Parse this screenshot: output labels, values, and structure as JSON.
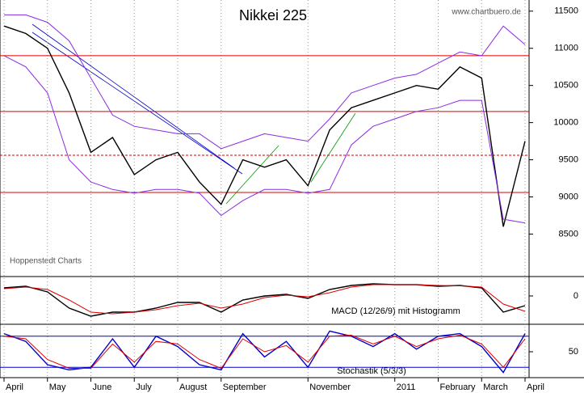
{
  "chart_data": [
    {
      "type": "line",
      "title": "Nikkei 225",
      "source": "www.chartbuero.de",
      "note": "Hoppenstedt Charts",
      "ylim": [
        7950,
        11650
      ],
      "yticks": [
        8500,
        9000,
        9500,
        10000,
        10500,
        11000,
        11500
      ],
      "levels": [
        10900,
        10150,
        9560,
        9060
      ],
      "level_color": "#dd0000",
      "series": [
        {
          "color": "#000000",
          "values": [
            11300,
            11200,
            11000,
            10400,
            9600,
            9800,
            9300,
            9500,
            9600,
            9200,
            8900,
            9500,
            9400,
            9500,
            9150,
            9900,
            10200,
            10300,
            10400,
            10500,
            10450,
            10750,
            10600,
            8600,
            9750
          ]
        },
        {
          "color": "#8a2be2",
          "values": [
            11450,
            11450,
            11350,
            11100,
            10600,
            10100,
            9950,
            9900,
            9850,
            9850,
            9650,
            9750,
            9850,
            9800,
            9750,
            10050,
            10400,
            10500,
            10600,
            10650,
            10800,
            10950,
            10900,
            11300,
            11050
          ]
        },
        {
          "color": "#8a2be2",
          "values": [
            10900,
            10750,
            10400,
            9500,
            9200,
            9100,
            9050,
            9100,
            9100,
            9050,
            8750,
            8950,
            9100,
            9100,
            9050,
            9100,
            9700,
            9950,
            10050,
            10150,
            10200,
            10300,
            10300,
            8700,
            8650
          ]
        }
      ]
    },
    {
      "type": "line",
      "title": "MACD (12/26/9) mit Histogramm",
      "ylim": [
        -340,
        210
      ],
      "yticks": [
        0
      ],
      "series": [
        {
          "color": "#000000",
          "values": [
            100,
            120,
            50,
            -150,
            -250,
            -200,
            -200,
            -150,
            -80,
            -80,
            -200,
            -50,
            0,
            20,
            -30,
            80,
            130,
            150,
            140,
            140,
            120,
            130,
            100,
            -200,
            -120
          ]
        },
        {
          "color": "#dd0000",
          "values": [
            90,
            110,
            80,
            -50,
            -200,
            -220,
            -200,
            -170,
            -120,
            -90,
            -150,
            -100,
            -20,
            10,
            -10,
            40,
            110,
            140,
            140,
            140,
            130,
            125,
            110,
            -100,
            -190
          ]
        }
      ]
    },
    {
      "type": "line",
      "title": "Stochastik (5/3/3)",
      "ylim": [
        0,
        100
      ],
      "yticks": [
        50
      ],
      "levels": [
        80,
        20
      ],
      "level_color": "#0000cc",
      "xlim": [
        0,
        12
      ],
      "xticks": [
        {
          "value": 0,
          "label": "April"
        },
        {
          "value": 1,
          "label": "May"
        },
        {
          "value": 2,
          "label": "June"
        },
        {
          "value": 3,
          "label": "July"
        },
        {
          "value": 4,
          "label": "August"
        },
        {
          "value": 5,
          "label": "September"
        },
        {
          "value": 7,
          "label": "November"
        },
        {
          "value": 9,
          "label": "2011"
        },
        {
          "value": 10,
          "label": "February"
        },
        {
          "value": 11,
          "label": "March"
        },
        {
          "value": 12,
          "label": "April"
        }
      ],
      "series": [
        {
          "color": "#0000cc",
          "values": [
            85,
            70,
            25,
            15,
            20,
            75,
            20,
            80,
            60,
            25,
            15,
            85,
            40,
            70,
            20,
            90,
            80,
            60,
            85,
            55,
            80,
            85,
            60,
            10,
            85
          ]
        },
        {
          "color": "#dd0000",
          "values": [
            80,
            75,
            35,
            18,
            18,
            65,
            30,
            70,
            65,
            35,
            18,
            75,
            50,
            62,
            30,
            80,
            82,
            65,
            80,
            60,
            75,
            82,
            65,
            20,
            75
          ]
        }
      ]
    }
  ]
}
